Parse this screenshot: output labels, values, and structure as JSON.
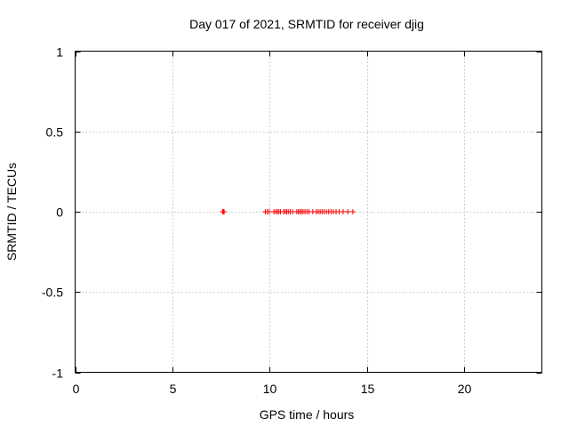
{
  "chart_data": {
    "type": "scatter",
    "title": "Day 017 of 2021, SRMTID for receiver djig",
    "xlabel": "GPS time / hours",
    "ylabel": "SRMTID / TECUs",
    "xlim": [
      0,
      24
    ],
    "ylim": [
      -1,
      1
    ],
    "xticks": [
      0,
      5,
      10,
      15,
      20
    ],
    "xtick_labels": [
      "0",
      "5",
      "10",
      "15",
      "20"
    ],
    "yticks": [
      1,
      0.5,
      0,
      -0.5,
      -1
    ],
    "ytick_labels": [
      "1",
      "0.5",
      "0",
      "-0.5",
      "-1"
    ],
    "grid": true,
    "marker": "+",
    "series": [
      {
        "color": "#ff0000",
        "x": [
          7.58,
          7.62,
          7.66,
          9.78,
          9.88,
          9.98,
          10.22,
          10.32,
          10.4,
          10.48,
          10.56,
          10.72,
          10.8,
          10.88,
          10.96,
          11.06,
          11.18,
          11.4,
          11.48,
          11.56,
          11.64,
          11.72,
          11.82,
          11.92,
          12.02,
          12.22,
          12.4,
          12.5,
          12.6,
          12.7,
          12.8,
          12.92,
          13.04,
          13.16,
          13.28,
          13.42,
          13.58,
          13.78,
          14.02,
          14.28
        ],
        "y": [
          0,
          0,
          0,
          0,
          0,
          0,
          0,
          0,
          0,
          0,
          0,
          0,
          0,
          0,
          0,
          0,
          0,
          0,
          0,
          0,
          0,
          0,
          0,
          0,
          0,
          0,
          0,
          0,
          0,
          0,
          0,
          0,
          0,
          0,
          0,
          0,
          0,
          0,
          0,
          0
        ]
      }
    ]
  }
}
